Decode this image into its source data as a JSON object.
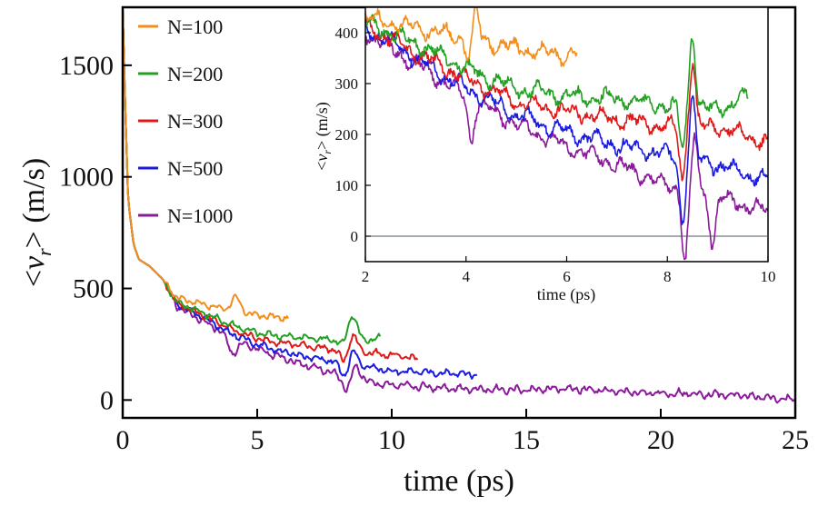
{
  "chart_data": [
    {
      "type": "line",
      "title": "",
      "xlabel": "time (ps)",
      "ylabel": "<v_r> (m/s)",
      "ylabel_parts": {
        "open": "<",
        "var": "v",
        "sub": "r",
        "close": ">",
        "unit": " (m/s)"
      },
      "xlim": [
        0,
        25
      ],
      "ylim": [
        -80,
        1760
      ],
      "xticks": [
        0,
        5,
        10,
        15,
        20,
        25
      ],
      "yticks": [
        0,
        500,
        1000,
        1500
      ],
      "grid": false,
      "legend_position": "top-left",
      "series": [
        {
          "name": "N=100",
          "color": "#f28e1c",
          "noise": 13,
          "points": [
            [
              0,
              1750
            ],
            [
              0.1,
              1300
            ],
            [
              0.2,
              900
            ],
            [
              0.4,
              700
            ],
            [
              0.6,
              630
            ],
            [
              1.0,
              600
            ],
            [
              1.5,
              540
            ],
            [
              2,
              460
            ],
            [
              3,
              430
            ],
            [
              4,
              400
            ],
            [
              5,
              380
            ],
            [
              6.2,
              365
            ]
          ]
        },
        {
          "name": "N=200",
          "color": "#22a022",
          "noise": 14,
          "points": [
            [
              0,
              1750
            ],
            [
              0.1,
              1300
            ],
            [
              0.2,
              900
            ],
            [
              0.4,
              700
            ],
            [
              0.6,
              630
            ],
            [
              1.0,
              600
            ],
            [
              1.5,
              540
            ],
            [
              2,
              440
            ],
            [
              3,
              390
            ],
            [
              4,
              340
            ],
            [
              5,
              300
            ],
            [
              6,
              285
            ],
            [
              7,
              278
            ],
            [
              8,
              270
            ],
            [
              8.5,
              300
            ],
            [
              9,
              265
            ],
            [
              9.6,
              280
            ]
          ]
        },
        {
          "name": "N=300",
          "color": "#e01818",
          "noise": 14,
          "points": [
            [
              0,
              1750
            ],
            [
              0.1,
              1300
            ],
            [
              0.2,
              900
            ],
            [
              0.4,
              700
            ],
            [
              0.6,
              630
            ],
            [
              1.0,
              600
            ],
            [
              1.5,
              540
            ],
            [
              2,
              435
            ],
            [
              3,
              380
            ],
            [
              4,
              320
            ],
            [
              5,
              275
            ],
            [
              6,
              255
            ],
            [
              7,
              240
            ],
            [
              8,
              225
            ],
            [
              9,
              215
            ],
            [
              10,
              200
            ],
            [
              11,
              185
            ]
          ]
        },
        {
          "name": "N=500",
          "color": "#1a1ae0",
          "noise": 14,
          "points": [
            [
              0,
              1750
            ],
            [
              0.1,
              1300
            ],
            [
              0.2,
              900
            ],
            [
              0.4,
              700
            ],
            [
              0.6,
              630
            ],
            [
              1.0,
              600
            ],
            [
              1.5,
              540
            ],
            [
              2,
              430
            ],
            [
              3,
              370
            ],
            [
              4,
              300
            ],
            [
              5,
              250
            ],
            [
              6,
              215
            ],
            [
              7,
              190
            ],
            [
              8,
              170
            ],
            [
              9,
              150
            ],
            [
              10,
              130
            ],
            [
              11,
              125
            ],
            [
              12,
              120
            ],
            [
              13.2,
              115
            ]
          ]
        },
        {
          "name": "N=1000",
          "color": "#8a1a9a",
          "noise": 16,
          "points": [
            [
              0,
              1750
            ],
            [
              0.1,
              1300
            ],
            [
              0.2,
              900
            ],
            [
              0.4,
              700
            ],
            [
              0.6,
              630
            ],
            [
              1.0,
              600
            ],
            [
              1.5,
              540
            ],
            [
              2,
              420
            ],
            [
              3,
              355
            ],
            [
              4,
              285
            ],
            [
              5,
              230
            ],
            [
              6,
              185
            ],
            [
              7,
              150
            ],
            [
              8,
              115
            ],
            [
              9,
              85
            ],
            [
              10,
              65
            ],
            [
              11,
              60
            ],
            [
              12,
              55
            ],
            [
              13,
              50
            ],
            [
              14,
              48
            ],
            [
              15,
              45
            ],
            [
              16,
              50
            ],
            [
              17,
              48
            ],
            [
              18,
              40
            ],
            [
              19,
              35
            ],
            [
              20,
              30
            ],
            [
              21,
              30
            ],
            [
              22,
              25
            ],
            [
              23,
              20
            ],
            [
              24,
              10
            ],
            [
              25,
              0
            ]
          ]
        }
      ],
      "spikes": [
        {
          "series": "N=100",
          "x": 4.2,
          "dy": 60
        },
        {
          "series": "N=200",
          "x": 8.5,
          "dy": 110
        },
        {
          "series": "N=200",
          "x": 8.3,
          "dy": -60
        },
        {
          "series": "N=300",
          "x": 8.5,
          "dy": 100
        },
        {
          "series": "N=300",
          "x": 8.3,
          "dy": -80
        },
        {
          "series": "N=500",
          "x": 8.5,
          "dy": 90
        },
        {
          "series": "N=500",
          "x": 8.3,
          "dy": -90
        },
        {
          "series": "N=1000",
          "x": 8.4,
          "dy": -95
        },
        {
          "series": "N=1000",
          "x": 8.6,
          "dy": 95
        },
        {
          "series": "N=1000",
          "x": 4.1,
          "dy": -70
        }
      ]
    },
    {
      "type": "line",
      "title": "",
      "inset": true,
      "xlabel": "time (ps)",
      "ylabel": "<v_r> (m/s)",
      "ylabel_parts": {
        "open": "<",
        "var": "v",
        "sub": "r",
        "close": ">",
        "unit": " (m/s)"
      },
      "xlim": [
        2,
        10
      ],
      "ylim": [
        -50,
        450
      ],
      "xticks": [
        2,
        4,
        6,
        8,
        10
      ],
      "yticks": [
        0,
        100,
        200,
        300,
        400
      ],
      "zero_line": true,
      "grid": false,
      "series": [
        {
          "name": "N=100",
          "color": "#f28e1c",
          "noise": 16,
          "points": [
            [
              2,
              430
            ],
            [
              3,
              410
            ],
            [
              4,
              390
            ],
            [
              5,
              370
            ],
            [
              6,
              355
            ],
            [
              6.2,
              360
            ]
          ]
        },
        {
          "name": "N=200",
          "color": "#22a022",
          "noise": 16,
          "points": [
            [
              2,
              420
            ],
            [
              3,
              380
            ],
            [
              4,
              330
            ],
            [
              5,
              290
            ],
            [
              6,
              275
            ],
            [
              7,
              270
            ],
            [
              8,
              255
            ],
            [
              9,
              250
            ],
            [
              9.6,
              275
            ]
          ]
        },
        {
          "name": "N=300",
          "color": "#e01818",
          "noise": 16,
          "points": [
            [
              2,
              415
            ],
            [
              3,
              360
            ],
            [
              4,
              310
            ],
            [
              5,
              265
            ],
            [
              6,
              245
            ],
            [
              7,
              230
            ],
            [
              8,
              215
            ],
            [
              9,
              215
            ],
            [
              10,
              185
            ]
          ]
        },
        {
          "name": "N=500",
          "color": "#1a1ae0",
          "noise": 16,
          "points": [
            [
              2,
              410
            ],
            [
              3,
              350
            ],
            [
              4,
              290
            ],
            [
              5,
              240
            ],
            [
              6,
              205
            ],
            [
              7,
              180
            ],
            [
              8,
              160
            ],
            [
              9,
              140
            ],
            [
              10,
              110
            ]
          ]
        },
        {
          "name": "N=1000",
          "color": "#8a1a9a",
          "noise": 16,
          "points": [
            [
              2,
              400
            ],
            [
              3,
              340
            ],
            [
              4,
              275
            ],
            [
              5,
              220
            ],
            [
              6,
              175
            ],
            [
              7,
              140
            ],
            [
              8,
              100
            ],
            [
              9,
              75
            ],
            [
              10,
              50
            ]
          ]
        }
      ],
      "spikes": [
        {
          "series": "N=100",
          "x": 4.2,
          "dy": 60
        },
        {
          "series": "N=100",
          "x": 4.05,
          "dy": -40
        },
        {
          "series": "N=200",
          "x": 8.5,
          "dy": 150
        },
        {
          "series": "N=200",
          "x": 8.3,
          "dy": -80
        },
        {
          "series": "N=300",
          "x": 8.5,
          "dy": 130
        },
        {
          "series": "N=300",
          "x": 8.3,
          "dy": -100
        },
        {
          "series": "N=500",
          "x": 8.5,
          "dy": 115
        },
        {
          "series": "N=500",
          "x": 8.3,
          "dy": -120
        },
        {
          "series": "N=1000",
          "x": 8.35,
          "dy": -140
        },
        {
          "series": "N=1000",
          "x": 8.55,
          "dy": 110
        },
        {
          "series": "N=1000",
          "x": 8.9,
          "dy": -90
        },
        {
          "series": "N=1000",
          "x": 4.1,
          "dy": -80
        }
      ]
    }
  ]
}
